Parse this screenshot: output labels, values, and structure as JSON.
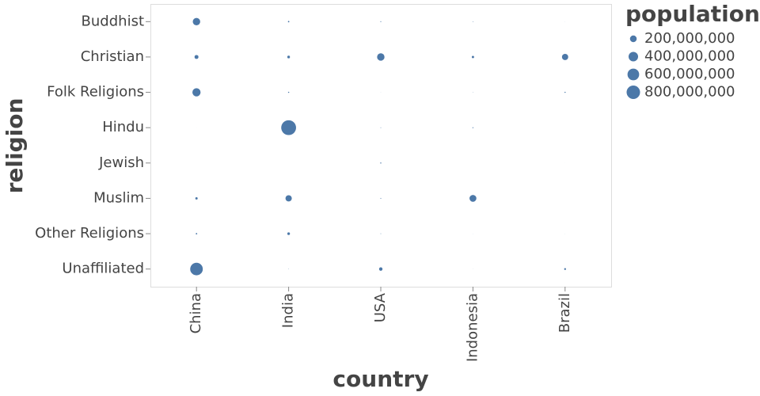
{
  "chart_data": {
    "type": "bubble",
    "x_label": "country",
    "y_label": "religion",
    "categories": [
      "China",
      "India",
      "USA",
      "Indonesia",
      "Brazil"
    ],
    "color": "#4c78a8",
    "series": [
      {
        "name": "Buddhist",
        "values": [
          244000000,
          9000000,
          3600000,
          1700000,
          200000
        ]
      },
      {
        "name": "Christian",
        "values": [
          68000000,
          31000000,
          243000000,
          23700000,
          173000000
        ]
      },
      {
        "name": "Folk Religions",
        "values": [
          294000000,
          5800000,
          600000,
          800000,
          5400000
        ]
      },
      {
        "name": "Hindu",
        "values": [
          100000,
          973000000,
          1800000,
          4000000,
          null
        ]
      },
      {
        "name": "Jewish",
        "values": [
          null,
          null,
          5700000,
          null,
          100000
        ]
      },
      {
        "name": "Muslim",
        "values": [
          24700000,
          176000000,
          2800000,
          209000000,
          null
        ]
      },
      {
        "name": "Other Religions",
        "values": [
          9000000,
          30000000,
          1900000,
          300000,
          300000
        ]
      },
      {
        "name": "Unaffiliated",
        "values": [
          700000000,
          1000000,
          50900000,
          300000,
          15400000
        ]
      }
    ],
    "size_legend": {
      "title": "population",
      "ticks": [
        {
          "value": 200000000,
          "label": "200,000,000"
        },
        {
          "value": 400000000,
          "label": "400,000,000"
        },
        {
          "value": 600000000,
          "label": "600,000,000"
        },
        {
          "value": 800000000,
          "label": "800,000,000"
        }
      ]
    }
  }
}
